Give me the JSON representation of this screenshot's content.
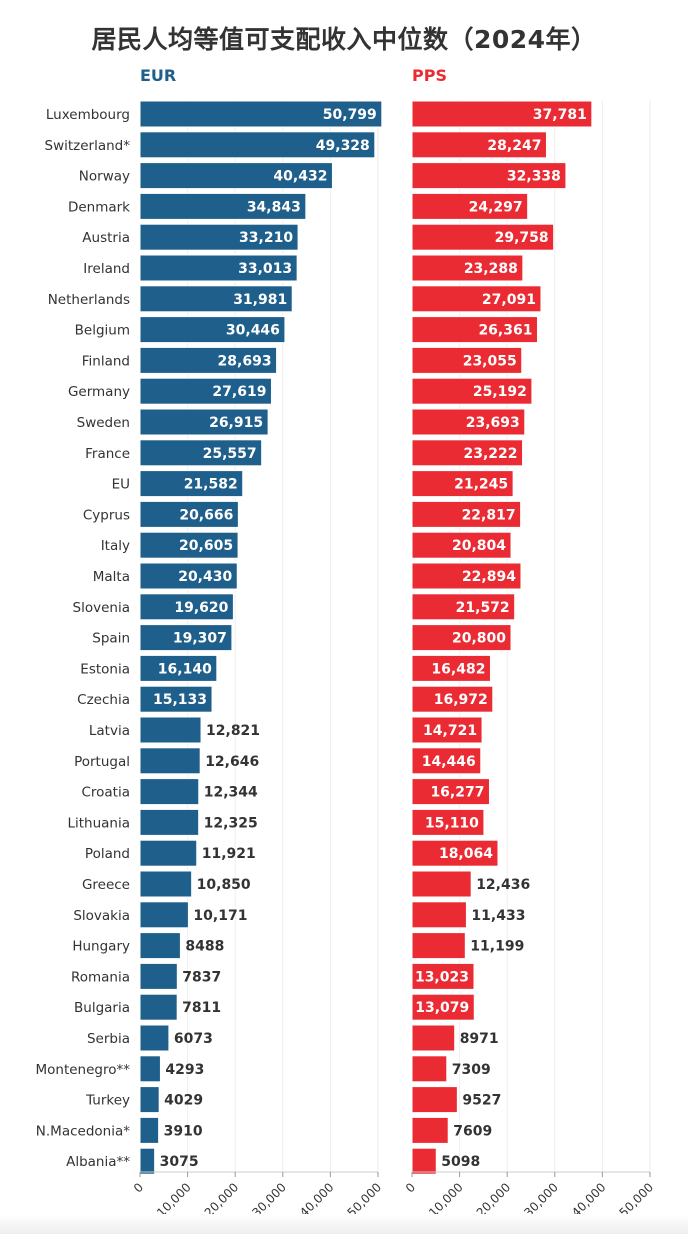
{
  "title": "居民人均等值可支配收入中位数（2024年）",
  "colors": {
    "eur": "#1f5f8b",
    "pps": "#ea2b33",
    "label_dark": "#333333",
    "label_light": "#ffffff",
    "text": "#333333"
  },
  "chart_data": {
    "type": "bar",
    "orientation": "horizontal",
    "title": "居民人均等值可支配收入中位数（2024年）",
    "categories": [
      "Luxembourg",
      "Switzerland*",
      "Norway",
      "Denmark",
      "Austria",
      "Ireland",
      "Netherlands",
      "Belgium",
      "Finland",
      "Germany",
      "Sweden",
      "France",
      "EU",
      "Cyprus",
      "Italy",
      "Malta",
      "Slovenia",
      "Spain",
      "Estonia",
      "Czechia",
      "Latvia",
      "Portugal",
      "Croatia",
      "Lithuania",
      "Poland",
      "Greece",
      "Slovakia",
      "Hungary",
      "Romania",
      "Bulgaria",
      "Serbia",
      "Montenegro**",
      "Turkey",
      "N.Macedonia*",
      "Albania**"
    ],
    "series": [
      {
        "name": "EUR",
        "values": [
          50799,
          49328,
          40432,
          34843,
          33210,
          33013,
          31981,
          30446,
          28693,
          27619,
          26915,
          25557,
          21582,
          20666,
          20605,
          20430,
          19620,
          19307,
          16140,
          15133,
          12821,
          12646,
          12344,
          12325,
          11921,
          10850,
          10171,
          8488,
          7837,
          7811,
          6073,
          4293,
          4029,
          3910,
          3075
        ],
        "labels": [
          "50,799",
          "49,328",
          "40,432",
          "34,843",
          "33,210",
          "33,013",
          "31,981",
          "30,446",
          "28,693",
          "27,619",
          "26,915",
          "25,557",
          "21,582",
          "20,666",
          "20,605",
          "20,430",
          "19,620",
          "19,307",
          "16,140",
          "15,133",
          "12,821",
          "12,646",
          "12,344",
          "12,325",
          "11,921",
          "10,850",
          "10,171",
          "8488",
          "7837",
          "7811",
          "6073",
          "4293",
          "4029",
          "3910",
          "3075"
        ],
        "label_inside": [
          true,
          true,
          true,
          true,
          true,
          true,
          true,
          true,
          true,
          true,
          true,
          true,
          true,
          true,
          true,
          true,
          true,
          true,
          true,
          true,
          false,
          false,
          false,
          false,
          false,
          false,
          false,
          false,
          false,
          false,
          false,
          false,
          false,
          false,
          false
        ]
      },
      {
        "name": "PPS",
        "values": [
          37781,
          28247,
          32338,
          24297,
          29758,
          23288,
          27091,
          26361,
          23055,
          25192,
          23693,
          23222,
          21245,
          22817,
          20804,
          22894,
          21572,
          20800,
          16482,
          16972,
          14721,
          14446,
          16277,
          15110,
          18064,
          12436,
          11433,
          11199,
          13023,
          13079,
          8971,
          7309,
          9527,
          7609,
          5098
        ],
        "labels": [
          "37,781",
          "28,247",
          "32,338",
          "24,297",
          "29,758",
          "23,288",
          "27,091",
          "26,361",
          "23,055",
          "25,192",
          "23,693",
          "23,222",
          "21,245",
          "22,817",
          "20,804",
          "22,894",
          "21,572",
          "20,800",
          "16,482",
          "16,972",
          "14,721",
          "14,446",
          "16,277",
          "15,110",
          "18,064",
          "12,436",
          "11,433",
          "11,199",
          "13,023",
          "13,079",
          "8971",
          "7309",
          "9527",
          "7609",
          "5098"
        ],
        "label_inside": [
          true,
          true,
          true,
          true,
          true,
          true,
          true,
          true,
          true,
          true,
          true,
          true,
          true,
          true,
          true,
          true,
          true,
          true,
          true,
          true,
          true,
          true,
          true,
          true,
          true,
          false,
          false,
          false,
          true,
          true,
          false,
          false,
          false,
          false,
          false
        ]
      }
    ],
    "x_ticks": [
      0,
      10000,
      20000,
      30000,
      40000,
      50000
    ],
    "x_tick_labels": [
      "0",
      "10,000",
      "20,000",
      "30,000",
      "40,000",
      "50,000"
    ],
    "xlim": [
      0,
      50000
    ],
    "grid": true
  }
}
